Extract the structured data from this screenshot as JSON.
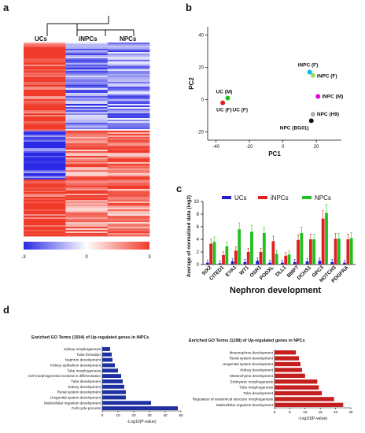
{
  "panels": {
    "a": {
      "label": "a",
      "columns": [
        "UCs",
        "iNPCs",
        "NPCs"
      ],
      "colorbar": {
        "min": "-3",
        "mid": "0",
        "max": "3",
        "low_color": "#2a2ae6",
        "mid_color": "#ffffff",
        "high_color": "#f03a2a"
      }
    },
    "b": {
      "label": "b",
      "xlabel": "PC1",
      "ylabel": "PC2",
      "xlim": [
        -45,
        35
      ],
      "ylim": [
        -25,
        45
      ],
      "xticks": [
        -40,
        -20,
        0,
        20
      ],
      "yticks": [
        -20,
        0,
        20,
        40
      ]
    },
    "c": {
      "label": "c",
      "title": "Nephron development",
      "ylabel": "Average of normalized data (log2)",
      "legend": [
        "UCs",
        "iNPCs",
        "NPCs"
      ]
    },
    "d": {
      "label": "d"
    }
  },
  "chart_data": [
    {
      "type": "scatter",
      "panel": "b",
      "xlabel": "PC1",
      "ylabel": "PC2",
      "xlim": [
        -45,
        35
      ],
      "ylim": [
        -25,
        45
      ],
      "points": [
        {
          "label": "iNPC (F)",
          "x": 16,
          "y": 17,
          "color": "#00c0e0"
        },
        {
          "label": "iNPC (F)",
          "x": 18,
          "y": 15,
          "color": "#a0d860"
        },
        {
          "label": "iNPC (M)",
          "x": 21,
          "y": 2,
          "color": "#e000e0"
        },
        {
          "label": "NPC (H9)",
          "x": 18,
          "y": -9,
          "color": "#b0b0b0"
        },
        {
          "label": "NPC (BG01)",
          "x": 17,
          "y": -13,
          "color": "#111111"
        },
        {
          "label": "UC (M)",
          "x": -33,
          "y": 1,
          "color": "#20c020"
        },
        {
          "label": "UC (F)",
          "x": -36,
          "y": -2,
          "color": "#e02020"
        }
      ]
    },
    {
      "type": "bar",
      "panel": "c",
      "ylabel": "Average of normalized data (log2)",
      "ylim": [
        0,
        10
      ],
      "yticks": [
        0,
        2,
        4,
        6,
        8,
        10
      ],
      "categories": [
        "SIX2",
        "CITED1",
        "EYA1",
        "WT1",
        "OSR1",
        "PODXL",
        "DLL1",
        "BMP7",
        "DCHS1",
        "GPC3",
        "NOTCH3",
        "PDGFRA"
      ],
      "series": [
        {
          "name": "UCs",
          "color": "#2020d0",
          "values": [
            0.3,
            0.2,
            0.5,
            0.4,
            0.6,
            0.3,
            0.3,
            0.4,
            0.5,
            0.6,
            0.4,
            0.3
          ]
        },
        {
          "name": "iNPCs",
          "color": "#e02020",
          "values": [
            3.3,
            1.5,
            2.2,
            2.0,
            2.0,
            3.7,
            1.4,
            3.9,
            4.0,
            7.3,
            4.1,
            4.0
          ]
        },
        {
          "name": "NPCs",
          "color": "#20c020",
          "values": [
            3.6,
            2.9,
            5.6,
            5.2,
            5.0,
            1.7,
            1.6,
            5.0,
            4.0,
            8.2,
            4.1,
            4.2
          ]
        }
      ]
    },
    {
      "type": "bar",
      "panel": "d-left",
      "title": "Enriched GO Terms (1504) of Up-regulated genes in iNPCs",
      "xlabel": "-Log10(P-value)",
      "xlim": [
        0,
        50
      ],
      "xticks": [
        0,
        10,
        20,
        30,
        40,
        50
      ],
      "color": "#1e2fa0",
      "categories": [
        "Kidney morphogenesis",
        "Tube formation",
        "Nephron development",
        "Kidney epithelium development",
        "Tube morphogenesis",
        "Cell morphogenesis involved in differentiation",
        "Tube development",
        "Kidney development",
        "Renal system development",
        "Urogenital system development",
        "Multicellular organism development",
        "Cell cycle process"
      ],
      "values": [
        5,
        6,
        6.5,
        8,
        10,
        12,
        13,
        14,
        15,
        15,
        31,
        48
      ]
    },
    {
      "type": "bar",
      "panel": "d-right",
      "title": "Enriched GO Terms (1198) of Up-regulated genes in NPCs",
      "xlabel": "-Log10(P-value)",
      "xlim": [
        0,
        25
      ],
      "xticks": [
        0,
        5,
        10,
        15,
        20,
        25
      ],
      "color": "#c41e1e",
      "categories": [
        "Mesonephros development",
        "Renal system development",
        "Urogenital system development",
        "Kidney development",
        "Mesenchyme development",
        "Embryonic morphogenesis",
        "Tube morphogenesis",
        "Tube development",
        "Regulation of anatomical structure morphogenesis",
        "Multicellular organism development"
      ],
      "values": [
        7,
        8,
        8.5,
        9,
        10,
        14,
        14.5,
        15.5,
        19.5,
        22.5
      ]
    }
  ]
}
